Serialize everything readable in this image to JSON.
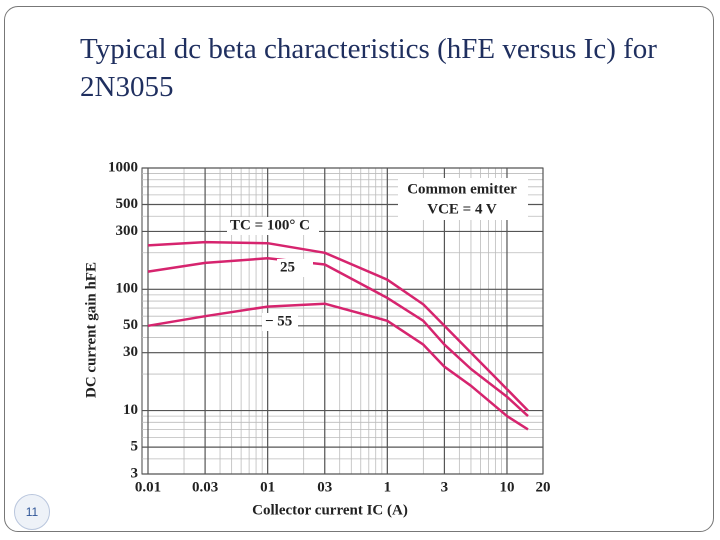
{
  "slide_number": "11",
  "chart_data": {
    "type": "line",
    "title": "Typical dc beta characteristics (hFE versus Ic) for 2N3055",
    "x_label": "Collector current IC (A)",
    "y_label": "DC current gain hFE",
    "x": [
      0.01,
      0.03,
      0.1,
      0.3,
      1,
      2,
      3,
      5,
      10,
      15
    ],
    "series": [
      {
        "name": "TC = 100° C",
        "color": "#d6246e",
        "values": [
          230,
          245,
          240,
          200,
          120,
          75,
          50,
          30,
          15,
          10
        ]
      },
      {
        "name": "25",
        "color": "#d6246e",
        "values": [
          140,
          165,
          180,
          160,
          85,
          55,
          35,
          22,
          13,
          9
        ]
      },
      {
        "name": "− 55",
        "color": "#d6246e",
        "values": [
          50,
          60,
          72,
          76,
          55,
          35,
          23,
          16,
          9,
          7
        ]
      }
    ],
    "annotations": [
      "Common emitter",
      "VCE = 4 V"
    ],
    "xlim": [
      0.01,
      20
    ],
    "ylim": [
      3,
      1000
    ],
    "xticks": [
      0.01,
      0.03,
      {
        "value": 0.1,
        "label": "01"
      },
      {
        "value": 0.3,
        "label": "03"
      },
      1,
      3,
      10,
      20
    ],
    "yticks": [
      1000,
      500,
      300,
      100,
      50,
      30,
      10,
      5,
      3
    ],
    "log_x": true,
    "log_y": true,
    "grid": true
  }
}
